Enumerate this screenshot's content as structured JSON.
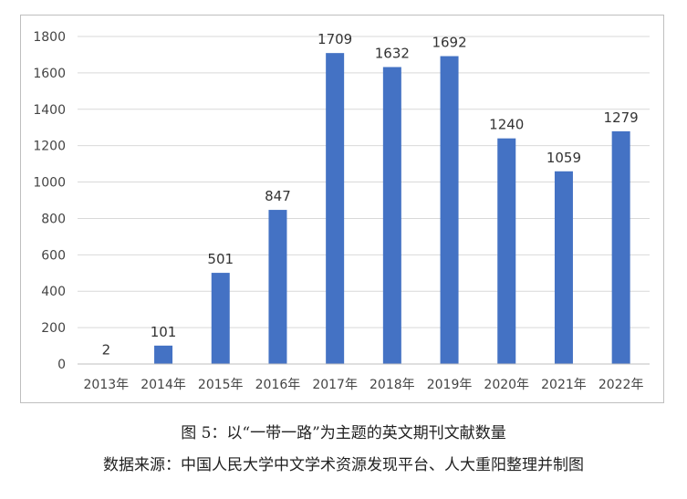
{
  "chart_data": {
    "type": "bar",
    "categories": [
      "2013年",
      "2014年",
      "2015年",
      "2016年",
      "2017年",
      "2018年",
      "2019年",
      "2020年",
      "2021年",
      "2022年"
    ],
    "values": [
      2,
      101,
      501,
      847,
      1709,
      1632,
      1692,
      1240,
      1059,
      1279
    ],
    "ylim": [
      0,
      1800
    ],
    "yticks": [
      0,
      200,
      400,
      600,
      800,
      1000,
      1200,
      1400,
      1600,
      1800
    ],
    "grid": true,
    "bar_color": "#4472c4",
    "grid_color": "#d9d9d9"
  },
  "caption": {
    "title": "图 5：以“一带一路”为主题的英文期刊文献数量",
    "source": "数据来源：中国人民大学中文学术资源发现平台、人大重阳整理并制图"
  }
}
